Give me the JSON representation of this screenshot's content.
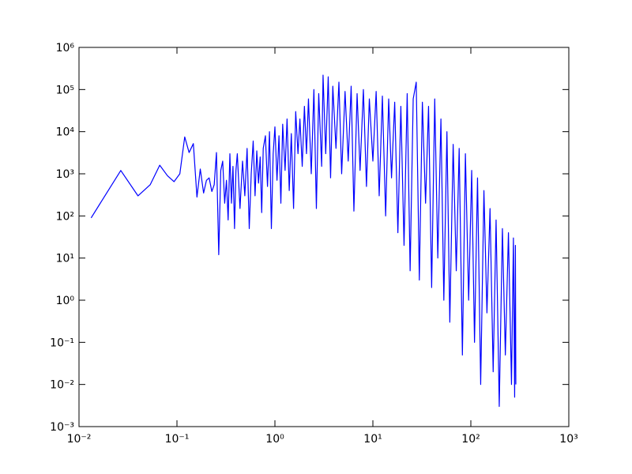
{
  "chart_data": {
    "type": "line",
    "xscale": "log",
    "yscale": "log",
    "color": "#0000ff",
    "xlim": [
      0.01,
      1000
    ],
    "ylim": [
      0.001,
      1000000
    ],
    "xticks": [
      {
        "value": 0.01,
        "label": "10⁻²"
      },
      {
        "value": 0.1,
        "label": "10⁻¹"
      },
      {
        "value": 1,
        "label": "10⁰"
      },
      {
        "value": 10,
        "label": "10¹"
      },
      {
        "value": 100,
        "label": "10²"
      },
      {
        "value": 1000,
        "label": "10³"
      }
    ],
    "yticks": [
      {
        "value": 0.001,
        "label": "10⁻³"
      },
      {
        "value": 0.01,
        "label": "10⁻²"
      },
      {
        "value": 0.1,
        "label": "10⁻¹"
      },
      {
        "value": 1,
        "label": "10⁰"
      },
      {
        "value": 10,
        "label": "10¹"
      },
      {
        "value": 100,
        "label": "10²"
      },
      {
        "value": 1000,
        "label": "10³"
      },
      {
        "value": 10000,
        "label": "10⁴"
      },
      {
        "value": 100000,
        "label": "10⁵"
      },
      {
        "value": 1000000,
        "label": "10⁶"
      }
    ],
    "x": [
      0.0133,
      0.0267,
      0.04,
      0.0533,
      0.0667,
      0.08,
      0.0933,
      0.107,
      0.12,
      0.133,
      0.147,
      0.16,
      0.173,
      0.187,
      0.2,
      0.213,
      0.227,
      0.24,
      0.253,
      0.267,
      0.28,
      0.293,
      0.307,
      0.32,
      0.333,
      0.347,
      0.36,
      0.373,
      0.387,
      0.4,
      0.413,
      0.44,
      0.467,
      0.493,
      0.52,
      0.547,
      0.573,
      0.6,
      0.627,
      0.653,
      0.68,
      0.707,
      0.733,
      0.76,
      0.8,
      0.84,
      0.88,
      0.92,
      0.96,
      1.0,
      1.05,
      1.1,
      1.15,
      1.2,
      1.27,
      1.33,
      1.4,
      1.47,
      1.55,
      1.63,
      1.72,
      1.8,
      1.9,
      2.0,
      2.1,
      2.2,
      2.35,
      2.5,
      2.65,
      2.8,
      3.0,
      3.1,
      3.3,
      3.5,
      3.7,
      3.9,
      4.2,
      4.5,
      4.8,
      5.2,
      5.6,
      6.0,
      6.4,
      6.9,
      7.4,
      8.0,
      8.6,
      9.2,
      10,
      10.8,
      11.6,
      12.5,
      13.5,
      14.5,
      15.5,
      16.7,
      18,
      19.3,
      20.8,
      22.4,
      24,
      25.8,
      27.7,
      29.8,
      32,
      34.5,
      37,
      39.8,
      42.8,
      46,
      49.5,
      53,
      57,
      61,
      66,
      71,
      76,
      82,
      88,
      95,
      102,
      109,
      117,
      126,
      136,
      146,
      157,
      169,
      181,
      195,
      210,
      225,
      242,
      260,
      272,
      280,
      285,
      288
    ],
    "values": [
      90,
      1200,
      300,
      550,
      1600,
      900,
      650,
      1000,
      7500,
      3200,
      5200,
      280,
      1300,
      350,
      700,
      800,
      380,
      550,
      3200,
      12,
      1200,
      2000,
      200,
      700,
      80,
      3000,
      200,
      1500,
      50,
      1200,
      3000,
      150,
      2000,
      300,
      4000,
      50,
      1000,
      6000,
      300,
      3500,
      600,
      2500,
      120,
      4000,
      8000,
      500,
      10000,
      50,
      3000,
      13000,
      700,
      8000,
      200,
      15000,
      1200,
      20000,
      400,
      9000,
      150,
      30000,
      3000,
      20000,
      1500,
      40000,
      3000,
      60000,
      1000,
      100000,
      150,
      80000,
      1500,
      220000,
      3000,
      200000,
      800,
      120000,
      4000,
      150000,
      1000,
      90000,
      2000,
      120000,
      130,
      80000,
      1200,
      100000,
      500,
      60000,
      2000,
      90000,
      300,
      70000,
      100,
      60000,
      800,
      50000,
      40,
      40000,
      20,
      80000,
      5,
      60000,
      150000,
      3,
      50000,
      200,
      40000,
      2,
      60000,
      10,
      20000,
      1,
      10000,
      0.3,
      5000,
      5,
      4000,
      0.05,
      3000,
      1,
      1200,
      0.1,
      800,
      0.01,
      400,
      0.5,
      150,
      0.02,
      80,
      0.003,
      50,
      0.05,
      40,
      0.01,
      30,
      0.005,
      20,
      0.01
    ]
  }
}
